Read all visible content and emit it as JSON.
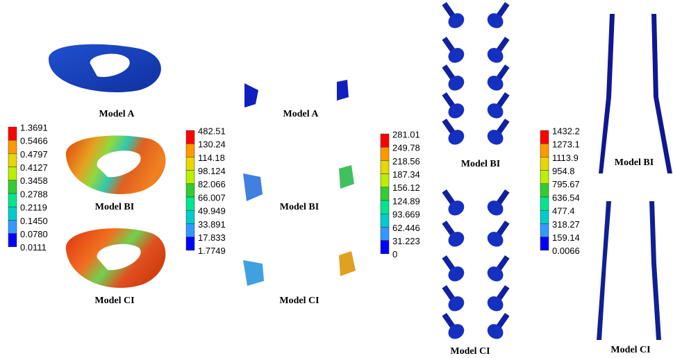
{
  "panels": [
    {
      "legend": [
        "1.3691",
        "0.5466",
        "0.4797",
        "0.4127",
        "0.3458",
        "0.2788",
        "0.2119",
        "0.1450",
        "0.0780",
        "0.0111"
      ],
      "models": [
        "Model A",
        "Model BI",
        "Model CI"
      ]
    },
    {
      "legend": [
        "482.51",
        "130.24",
        "114.18",
        "98.124",
        "82.066",
        "66.007",
        "49.949",
        "33.891",
        "17.833",
        "1.7749"
      ],
      "models": [
        "Model A",
        "Model BI",
        "Model CI"
      ]
    },
    {
      "legend": [
        "281.01",
        "249.78",
        "218.56",
        "187.34",
        "156.12",
        "124.89",
        "93.669",
        "62.446",
        "31.223",
        "0"
      ],
      "models": [
        "Model BI",
        "Model CI"
      ]
    },
    {
      "legend": [
        "1432.2",
        "1273.1",
        "1113.9",
        "954.8",
        "795.67",
        "636.54",
        "477.4",
        "318.27",
        "159.14",
        "0.0066"
      ],
      "models": [
        "Model BI",
        "Model CI"
      ]
    }
  ]
}
